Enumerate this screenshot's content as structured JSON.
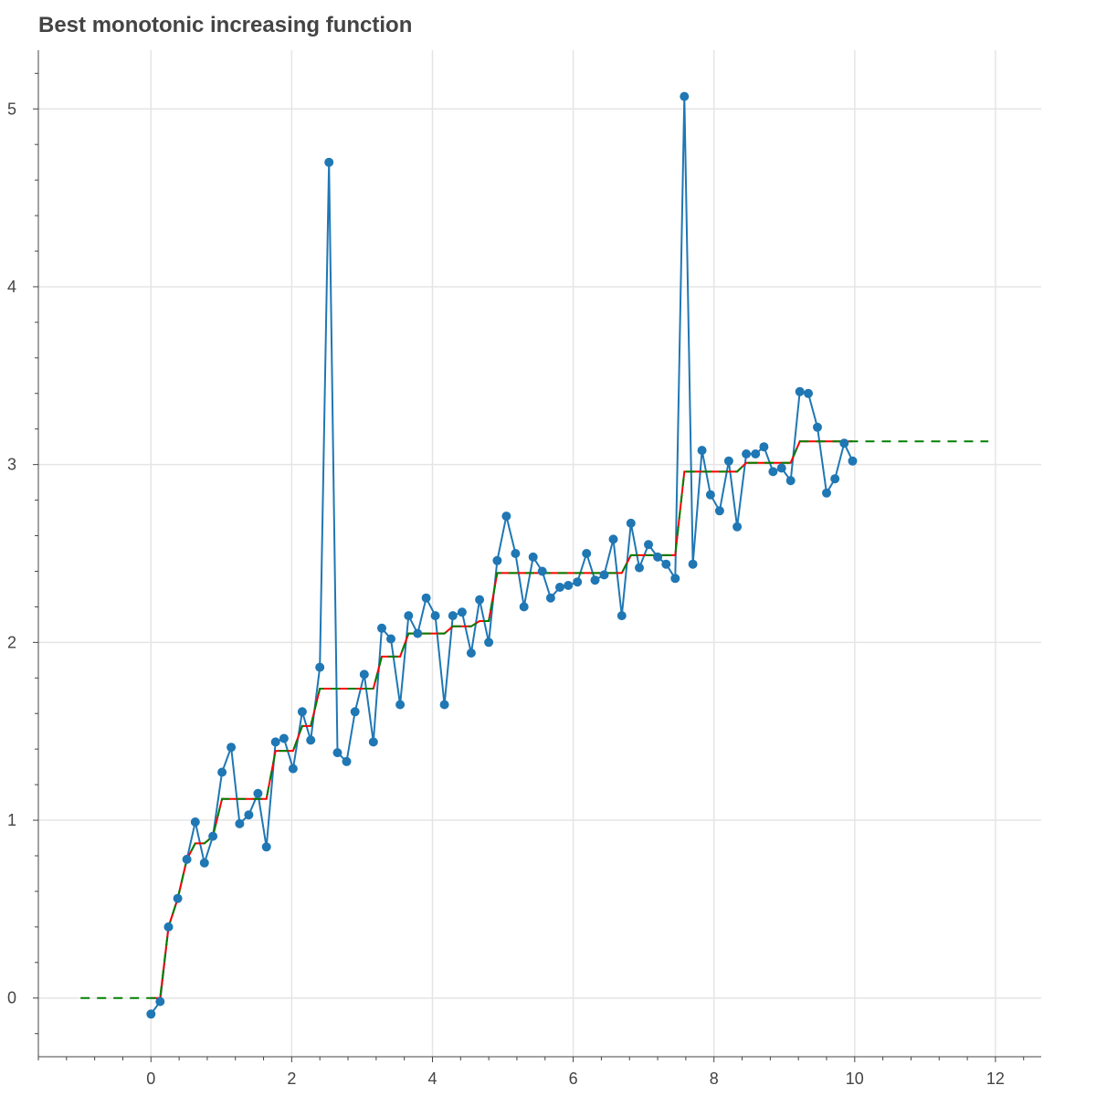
{
  "chart_data": {
    "type": "line",
    "title": "Best monotonic increasing function",
    "xlabel": "",
    "ylabel": "",
    "xlim": [
      -1.6,
      12.65
    ],
    "ylim": [
      -0.33,
      5.33
    ],
    "grid": true,
    "x_ticks": [
      0,
      2,
      4,
      6,
      8,
      10,
      12
    ],
    "y_ticks": [
      0,
      1,
      2,
      3,
      4,
      5
    ],
    "colors": {
      "data": "#1f77b4",
      "fit": "#ff0000",
      "interp": "#008000",
      "grid": "#e5e5e5",
      "axis": "#444444"
    },
    "series": [
      {
        "role": "data",
        "style": "line+markers",
        "x": [
          0.0,
          0.13,
          0.25,
          0.38,
          0.51,
          0.63,
          0.76,
          0.88,
          1.01,
          1.14,
          1.26,
          1.39,
          1.52,
          1.64,
          1.77,
          1.89,
          2.02,
          2.15,
          2.27,
          2.4,
          2.53,
          2.65,
          2.78,
          2.9,
          3.03,
          3.16,
          3.28,
          3.41,
          3.54,
          3.66,
          3.79,
          3.91,
          4.04,
          4.17,
          4.29,
          4.42,
          4.55,
          4.67,
          4.8,
          4.92,
          5.05,
          5.18,
          5.3,
          5.43,
          5.56,
          5.68,
          5.81,
          5.93,
          6.06,
          6.19,
          6.31,
          6.44,
          6.57,
          6.69,
          6.82,
          6.94,
          7.07,
          7.2,
          7.32,
          7.45,
          7.58,
          7.7,
          7.83,
          7.95,
          8.08,
          8.21,
          8.33,
          8.46,
          8.59,
          8.71,
          8.84,
          8.96,
          9.09,
          9.22,
          9.34,
          9.47,
          9.6,
          9.72,
          9.85,
          9.97
        ],
        "y": [
          -0.09,
          -0.02,
          0.4,
          0.56,
          0.78,
          0.99,
          0.76,
          0.91,
          1.27,
          1.41,
          0.98,
          1.03,
          1.15,
          0.85,
          1.44,
          1.46,
          1.29,
          1.61,
          1.45,
          1.86,
          4.7,
          1.38,
          1.33,
          1.61,
          1.82,
          1.44,
          2.08,
          2.02,
          1.65,
          2.15,
          2.05,
          2.25,
          2.15,
          1.65,
          2.15,
          2.17,
          1.94,
          2.24,
          2.0,
          2.46,
          2.71,
          2.5,
          2.2,
          2.48,
          2.4,
          2.25,
          2.31,
          2.32,
          2.34,
          2.5,
          2.35,
          2.38,
          2.58,
          2.15,
          2.67,
          2.42,
          2.55,
          2.48,
          2.44,
          2.36,
          5.07,
          2.44,
          3.08,
          2.83,
          2.74,
          3.02,
          2.65,
          3.06,
          3.06,
          3.1,
          2.96,
          2.98,
          2.91,
          3.41,
          3.4,
          3.21,
          2.84,
          2.92,
          3.12,
          3.02
        ]
      },
      {
        "role": "fit",
        "style": "solid",
        "x": [
          0.0,
          0.13,
          0.25,
          0.38,
          0.51,
          0.63,
          0.76,
          0.88,
          1.01,
          1.14,
          1.26,
          1.39,
          1.52,
          1.64,
          1.77,
          1.89,
          2.02,
          2.15,
          2.27,
          2.4,
          2.53,
          2.65,
          2.78,
          2.9,
          3.03,
          3.16,
          3.28,
          3.41,
          3.54,
          3.66,
          3.79,
          3.91,
          4.04,
          4.17,
          4.29,
          4.42,
          4.55,
          4.67,
          4.8,
          4.92,
          5.05,
          5.18,
          5.3,
          5.43,
          5.56,
          5.68,
          5.81,
          5.93,
          6.06,
          6.19,
          6.31,
          6.44,
          6.57,
          6.69,
          6.82,
          6.94,
          7.07,
          7.2,
          7.32,
          7.45,
          7.58,
          7.7,
          7.83,
          7.95,
          8.08,
          8.21,
          8.33,
          8.46,
          8.59,
          8.71,
          8.84,
          8.96,
          9.09,
          9.22,
          9.34,
          9.47,
          9.6,
          9.72,
          9.85,
          9.97
        ],
        "y": [
          0.0,
          0.0,
          0.4,
          0.56,
          0.78,
          0.87,
          0.87,
          0.91,
          1.12,
          1.12,
          1.12,
          1.12,
          1.12,
          1.12,
          1.39,
          1.39,
          1.39,
          1.53,
          1.53,
          1.74,
          1.74,
          1.74,
          1.74,
          1.74,
          1.74,
          1.74,
          1.92,
          1.92,
          1.92,
          2.05,
          2.05,
          2.05,
          2.05,
          2.05,
          2.09,
          2.09,
          2.09,
          2.12,
          2.12,
          2.39,
          2.39,
          2.39,
          2.39,
          2.39,
          2.39,
          2.39,
          2.39,
          2.39,
          2.39,
          2.39,
          2.39,
          2.39,
          2.39,
          2.39,
          2.49,
          2.49,
          2.49,
          2.49,
          2.49,
          2.49,
          2.96,
          2.96,
          2.96,
          2.96,
          2.96,
          2.96,
          2.96,
          3.01,
          3.01,
          3.01,
          3.01,
          3.01,
          3.01,
          3.13,
          3.13,
          3.13,
          3.13,
          3.13,
          3.13,
          3.13
        ]
      },
      {
        "role": "interp",
        "style": "dashed",
        "x": [
          -1.0,
          0.13,
          0.25,
          0.38,
          0.51,
          0.63,
          0.76,
          0.88,
          1.01,
          1.14,
          1.26,
          1.39,
          1.52,
          1.64,
          1.77,
          1.89,
          2.02,
          2.15,
          2.27,
          2.4,
          2.53,
          2.65,
          2.78,
          2.9,
          3.03,
          3.16,
          3.28,
          3.41,
          3.54,
          3.66,
          3.79,
          3.91,
          4.04,
          4.17,
          4.29,
          4.42,
          4.55,
          4.67,
          4.8,
          4.92,
          5.05,
          5.18,
          5.3,
          5.43,
          5.56,
          5.68,
          5.81,
          5.93,
          6.06,
          6.19,
          6.31,
          6.44,
          6.57,
          6.69,
          6.82,
          6.94,
          7.07,
          7.2,
          7.32,
          7.45,
          7.58,
          7.7,
          7.83,
          7.95,
          8.08,
          8.21,
          8.33,
          8.46,
          8.59,
          8.71,
          8.84,
          8.96,
          9.09,
          9.22,
          9.34,
          9.47,
          9.6,
          9.72,
          9.85,
          11.9
        ],
        "y": [
          0.0,
          0.0,
          0.4,
          0.56,
          0.78,
          0.87,
          0.87,
          0.91,
          1.12,
          1.12,
          1.12,
          1.12,
          1.12,
          1.12,
          1.39,
          1.39,
          1.39,
          1.53,
          1.53,
          1.74,
          1.74,
          1.74,
          1.74,
          1.74,
          1.74,
          1.74,
          1.92,
          1.92,
          1.92,
          2.05,
          2.05,
          2.05,
          2.05,
          2.05,
          2.09,
          2.09,
          2.09,
          2.12,
          2.12,
          2.39,
          2.39,
          2.39,
          2.39,
          2.39,
          2.39,
          2.39,
          2.39,
          2.39,
          2.39,
          2.39,
          2.39,
          2.39,
          2.39,
          2.39,
          2.49,
          2.49,
          2.49,
          2.49,
          2.49,
          2.49,
          2.96,
          2.96,
          2.96,
          2.96,
          2.96,
          2.96,
          2.96,
          3.01,
          3.01,
          3.01,
          3.01,
          3.01,
          3.01,
          3.13,
          3.13,
          3.13,
          3.13,
          3.13,
          3.13,
          3.13
        ]
      }
    ]
  }
}
